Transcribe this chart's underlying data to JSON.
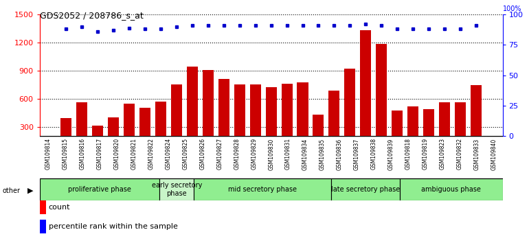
{
  "title": "GDS2052 / 208786_s_at",
  "samples": [
    "GSM109814",
    "GSM109815",
    "GSM109816",
    "GSM109817",
    "GSM109820",
    "GSM109821",
    "GSM109822",
    "GSM109824",
    "GSM109825",
    "GSM109826",
    "GSM109827",
    "GSM109828",
    "GSM109829",
    "GSM109830",
    "GSM109831",
    "GSM109834",
    "GSM109835",
    "GSM109836",
    "GSM109837",
    "GSM109838",
    "GSM109839",
    "GSM109818",
    "GSM109819",
    "GSM109823",
    "GSM109832",
    "GSM109833",
    "GSM109840"
  ],
  "counts": [
    390,
    560,
    310,
    400,
    545,
    500,
    570,
    750,
    940,
    910,
    810,
    755,
    750,
    720,
    760,
    775,
    430,
    685,
    920,
    1330,
    1185,
    475,
    520,
    490,
    560,
    560,
    745
  ],
  "pct_vals": [
    88,
    90,
    86,
    87,
    89,
    88,
    88,
    90,
    91,
    91,
    91,
    91,
    91,
    91,
    91,
    91,
    91,
    91,
    91,
    92,
    91,
    88,
    88,
    88,
    88,
    88,
    91
  ],
  "phases": [
    {
      "label": "proliferative phase",
      "start": 0,
      "end": 7,
      "color": "#90EE90"
    },
    {
      "label": "early secretory\nphase",
      "start": 7,
      "end": 9,
      "color": "#c8f5c8"
    },
    {
      "label": "mid secretory phase",
      "start": 9,
      "end": 17,
      "color": "#90EE90"
    },
    {
      "label": "late secretory phase",
      "start": 17,
      "end": 21,
      "color": "#90EE90"
    },
    {
      "label": "ambiguous phase",
      "start": 21,
      "end": 27,
      "color": "#90EE90"
    }
  ],
  "bar_color": "#cc0000",
  "dot_color": "#0000cc",
  "ylim_left": [
    200,
    1500
  ],
  "ylim_right": [
    0,
    100
  ],
  "yticks_left": [
    300,
    600,
    900,
    1200,
    1500
  ],
  "yticks_right": [
    0,
    25,
    50,
    75,
    100
  ],
  "plot_bg": "#ffffff",
  "label_bg": "#d8d8d8"
}
